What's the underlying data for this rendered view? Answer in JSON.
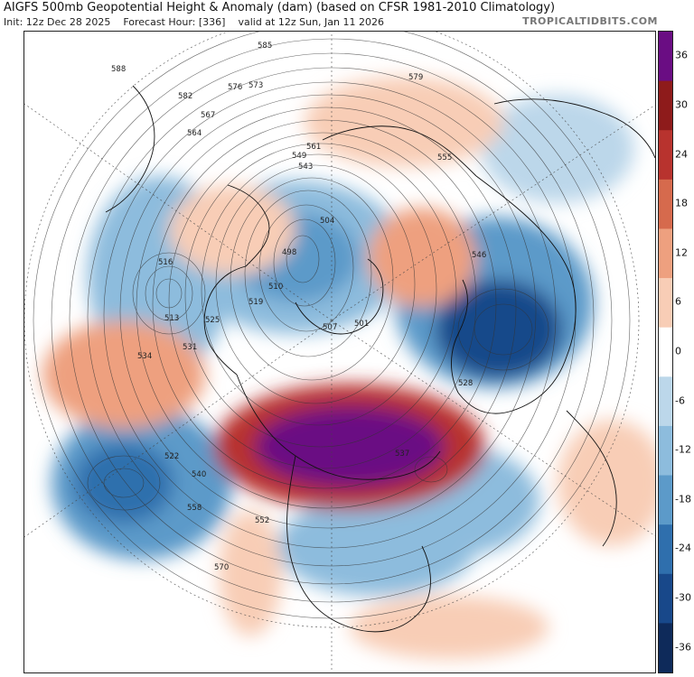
{
  "header": {
    "title": "AIGFS 500mb Geopotential Height & Anomaly (dam) (based on CFSR 1981-2010 Climatology)",
    "init": "Init: 12z Dec 28 2025",
    "forecast_hour": "Forecast Hour: [336]",
    "valid": "valid at 12z Sun, Jan 11 2026",
    "brand": "TROPICALTIDBITS.COM"
  },
  "colorbar": {
    "ticks": [
      "36",
      "30",
      "24",
      "18",
      "12",
      "6",
      "0",
      "-6",
      "-12",
      "-18",
      "-24",
      "-30",
      "-36"
    ],
    "colors": [
      "#6a0d83",
      "#8e1b1b",
      "#b8332e",
      "#d66a4d",
      "#eea07f",
      "#f8cdb6",
      "#ffffff",
      "#bcd7ea",
      "#8dbcdd",
      "#5c9ac9",
      "#2f6fad",
      "#18488a",
      "#0e2a5a"
    ]
  },
  "contour_labels": [
    {
      "text": "585"
    },
    {
      "text": "582"
    },
    {
      "text": "579"
    },
    {
      "text": "576"
    },
    {
      "text": "573"
    },
    {
      "text": "570"
    },
    {
      "text": "567"
    },
    {
      "text": "564"
    },
    {
      "text": "561"
    },
    {
      "text": "558"
    },
    {
      "text": "555"
    },
    {
      "text": "552"
    },
    {
      "text": "549"
    },
    {
      "text": "546"
    },
    {
      "text": "543"
    },
    {
      "text": "540"
    },
    {
      "text": "537"
    },
    {
      "text": "534"
    },
    {
      "text": "531"
    },
    {
      "text": "528"
    },
    {
      "text": "525"
    },
    {
      "text": "522"
    },
    {
      "text": "519"
    },
    {
      "text": "516"
    },
    {
      "text": "513"
    },
    {
      "text": "510"
    },
    {
      "text": "507"
    },
    {
      "text": "504"
    },
    {
      "text": "501"
    },
    {
      "text": "498"
    },
    {
      "text": "588"
    }
  ]
}
